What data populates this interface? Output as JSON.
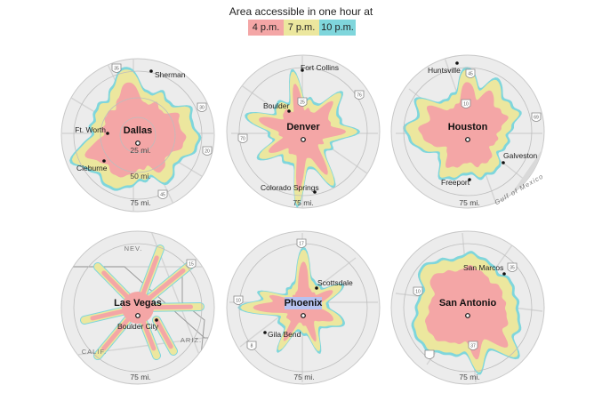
{
  "legend": {
    "title": "Area accessible in one hour at",
    "items": [
      {
        "label": "4 p.m.",
        "color": "#f4a6a6"
      },
      {
        "label": "7 p.m.",
        "color": "#ece79e"
      },
      {
        "label": "10 p.m.",
        "color": "#7fd6dc"
      }
    ]
  },
  "colors": {
    "disc_fill": "#ececec",
    "disc_stroke": "#c8c8c8",
    "road": "#d4d4d4",
    "ring": "#bdbdbd",
    "water": "#d9d9d9",
    "highway_shield": "#ffffff"
  },
  "maps": [
    {
      "city": "Dallas",
      "ring_labels": [
        "25 mi.",
        "50 mi.",
        "75 mi."
      ],
      "towns": [
        {
          "name": "Sherman"
        },
        {
          "name": "Ft. Worth"
        },
        {
          "name": "Cleburne"
        }
      ],
      "highways": [
        "35",
        "30",
        "20",
        "45"
      ],
      "regions": []
    },
    {
      "city": "Denver",
      "ring_labels": [
        "75 mi."
      ],
      "towns": [
        {
          "name": "Fort Collins"
        },
        {
          "name": "Boulder"
        },
        {
          "name": "Colorado Springs"
        }
      ],
      "highways": [
        "25",
        "76",
        "70"
      ],
      "regions": []
    },
    {
      "city": "Houston",
      "ring_labels": [
        "75 mi."
      ],
      "towns": [
        {
          "name": "Huntsville"
        },
        {
          "name": "Galveston"
        },
        {
          "name": "Freeport"
        }
      ],
      "highways": [
        "45",
        "69",
        "10"
      ],
      "regions": [
        "Gulf of Mexico"
      ]
    },
    {
      "city": "Las Vegas",
      "ring_labels": [
        "75 mi."
      ],
      "towns": [
        {
          "name": "Boulder City"
        }
      ],
      "highways": [
        "15"
      ],
      "regions": [
        "NEV.",
        "ARIZ.",
        "CALIF."
      ]
    },
    {
      "city": "Phoenix",
      "ring_labels": [
        "75 mi."
      ],
      "towns": [
        {
          "name": "Scottsdale"
        },
        {
          "name": "Gila Bend"
        }
      ],
      "highways": [
        "17",
        "10",
        "8"
      ],
      "regions": []
    },
    {
      "city": "San Antonio",
      "ring_labels": [
        "75 mi."
      ],
      "towns": [
        {
          "name": "San Marcos"
        }
      ],
      "highways": [
        "35",
        "10",
        "37"
      ],
      "regions": []
    }
  ]
}
